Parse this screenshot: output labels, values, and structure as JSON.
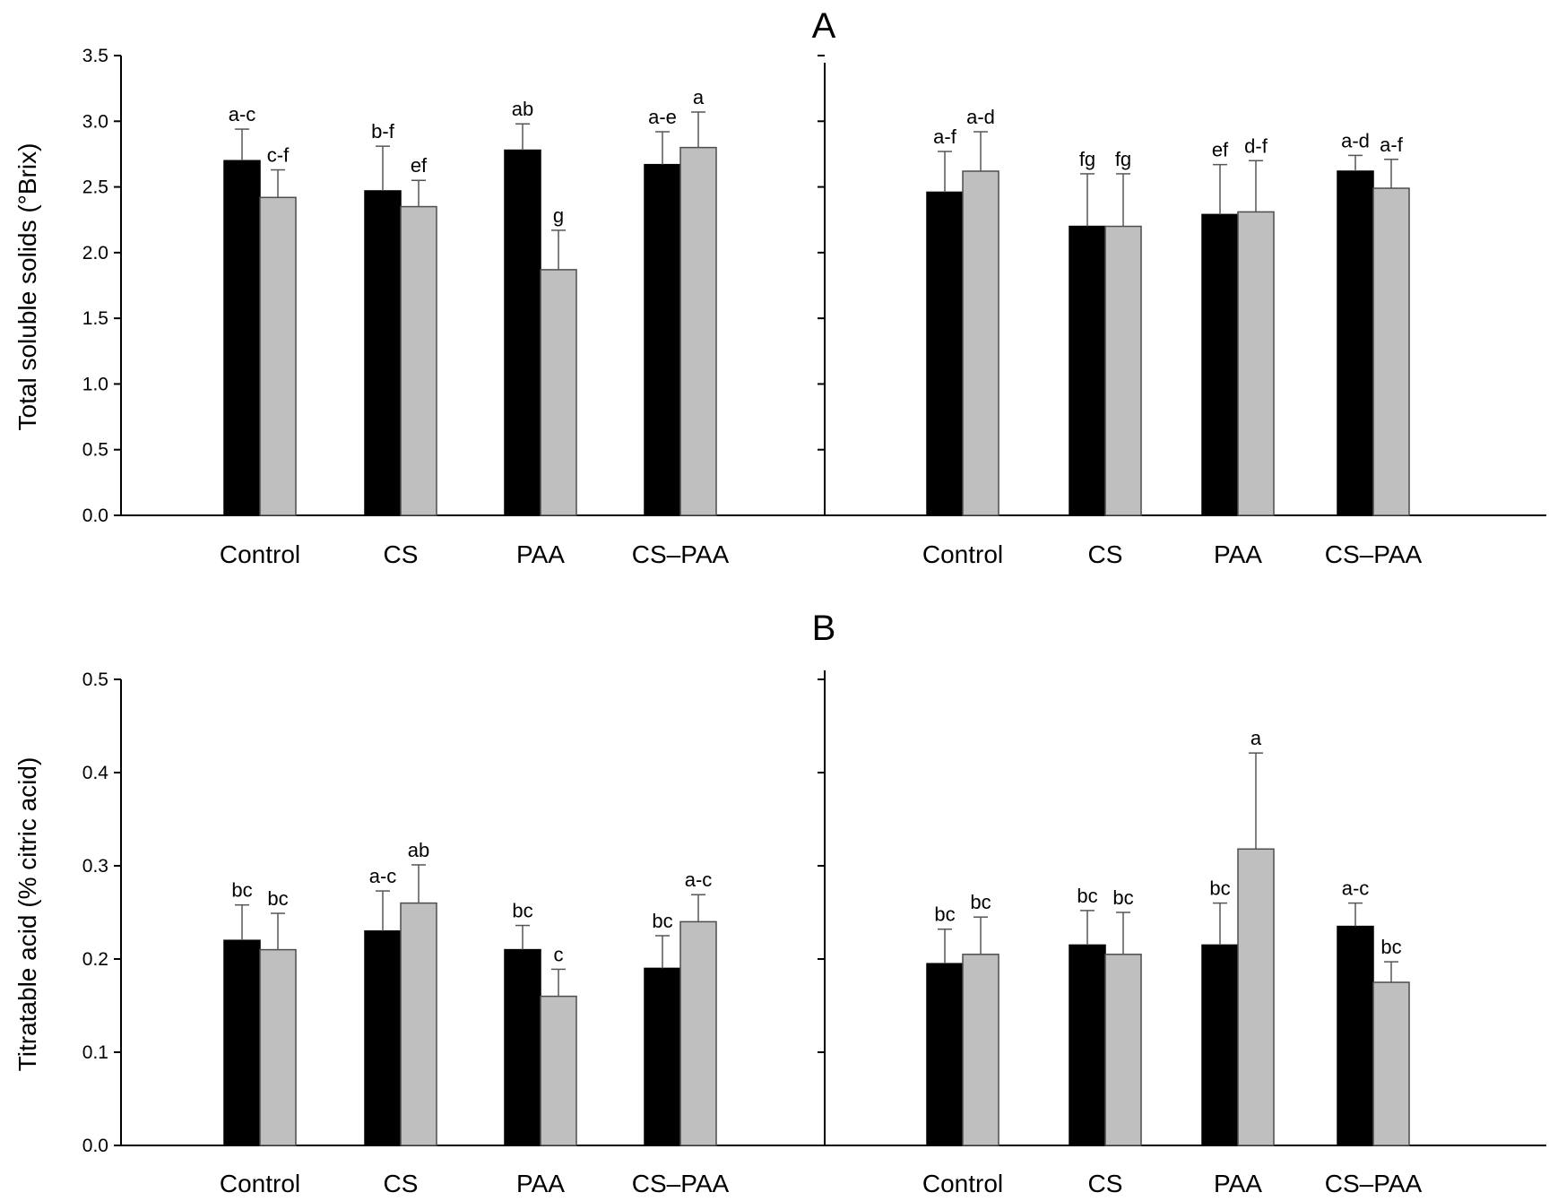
{
  "figure": {
    "panels": [
      {
        "letter": "A",
        "ylabel": "Total soluble solids (°Brix)"
      },
      {
        "letter": "B",
        "ylabel": "Titratable acid (% citric acid)"
      }
    ],
    "colors": {
      "series1": "#000000",
      "series2": "#bfbfbf",
      "errorbar": "#555555"
    }
  },
  "chart_data": [
    {
      "type": "bar",
      "panel": "A",
      "subplot": "left",
      "categories": [
        "Control",
        "CS",
        "PAA",
        "CS–PAA"
      ],
      "ylim": [
        0,
        3.5
      ],
      "yticks": [
        "0.0",
        "0.5",
        "1.0",
        "1.5",
        "2.0",
        "2.5",
        "3.0",
        "3.5"
      ],
      "series": [
        {
          "values": [
            2.7,
            2.47,
            2.78,
            2.67
          ],
          "errors": [
            0.24,
            0.34,
            0.2,
            0.25
          ],
          "labels": [
            "a-c",
            "b-f",
            "ab",
            "a-e"
          ]
        },
        {
          "values": [
            2.42,
            2.35,
            1.87,
            2.8
          ],
          "errors": [
            0.21,
            0.2,
            0.3,
            0.27
          ],
          "labels": [
            "c-f",
            "ef",
            "g",
            "a"
          ]
        }
      ]
    },
    {
      "type": "bar",
      "panel": "A",
      "subplot": "right",
      "categories": [
        "Control",
        "CS",
        "PAA",
        "CS–PAA"
      ],
      "ylim": [
        0,
        3.5
      ],
      "series": [
        {
          "values": [
            2.46,
            2.2,
            2.29,
            2.62
          ],
          "errors": [
            0.31,
            0.4,
            0.38,
            0.12
          ],
          "labels": [
            "a-f",
            "fg",
            "ef",
            "a-d"
          ]
        },
        {
          "values": [
            2.62,
            2.2,
            2.31,
            2.49
          ],
          "errors": [
            0.3,
            0.4,
            0.39,
            0.22
          ],
          "labels": [
            "a-d",
            "fg",
            "d-f",
            "a-f"
          ]
        }
      ]
    },
    {
      "type": "bar",
      "panel": "B",
      "subplot": "left",
      "categories": [
        "Control",
        "CS",
        "PAA",
        "CS–PAA"
      ],
      "ylim": [
        0,
        0.5
      ],
      "yticks": [
        "0.0",
        "0.1",
        "0.2",
        "0.3",
        "0.4",
        "0.5"
      ],
      "series": [
        {
          "values": [
            0.22,
            0.23,
            0.21,
            0.19
          ],
          "errors": [
            0.038,
            0.043,
            0.026,
            0.035
          ],
          "labels": [
            "bc",
            "a-c",
            "bc",
            "bc"
          ]
        },
        {
          "values": [
            0.21,
            0.26,
            0.16,
            0.24
          ],
          "errors": [
            0.039,
            0.041,
            0.029,
            0.029
          ],
          "labels": [
            "bc",
            "ab",
            "c",
            "a-c"
          ]
        }
      ]
    },
    {
      "type": "bar",
      "panel": "B",
      "subplot": "right",
      "categories": [
        "Control",
        "CS",
        "PAA",
        "CS–PAA"
      ],
      "ylim": [
        0,
        0.5
      ],
      "series": [
        {
          "values": [
            0.195,
            0.215,
            0.215,
            0.235
          ],
          "errors": [
            0.037,
            0.037,
            0.045,
            0.025
          ],
          "labels": [
            "bc",
            "bc",
            "bc",
            "a-c"
          ]
        },
        {
          "values": [
            0.205,
            0.205,
            0.318,
            0.175
          ],
          "errors": [
            0.04,
            0.045,
            0.103,
            0.022
          ],
          "labels": [
            "bc",
            "bc",
            "a",
            "bc"
          ]
        }
      ]
    }
  ]
}
